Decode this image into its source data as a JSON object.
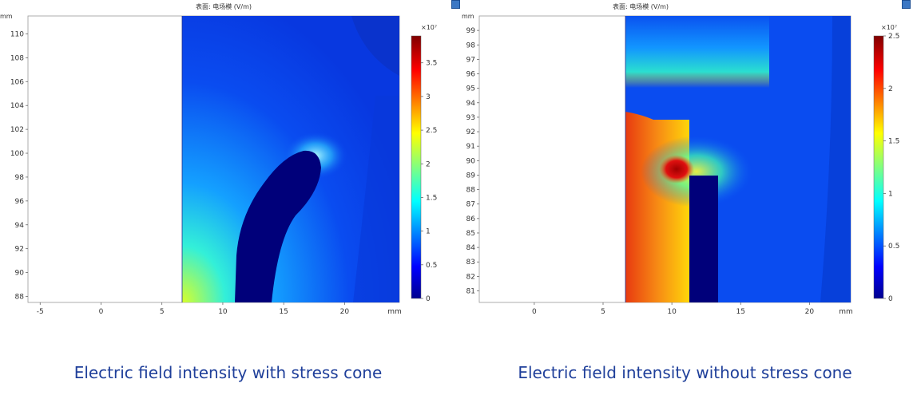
{
  "chart_data": [
    {
      "type": "heatmap",
      "title": "表面: 电场模 (V/m)",
      "caption": "Electric field intensity with stress cone",
      "xunit": "mm",
      "yunit": "mm",
      "xlim": [
        -6,
        24.5
      ],
      "ylim": [
        87.5,
        111.5
      ],
      "xticks": [
        "-5",
        "0",
        "5",
        "10",
        "15",
        "20"
      ],
      "yticks": [
        "110",
        "108",
        "106",
        "104",
        "102",
        "100",
        "98",
        "96",
        "94",
        "92",
        "90",
        "88"
      ],
      "colorbar": {
        "exponent": "×10⁷",
        "range": [
          0,
          3.9
        ],
        "ticks": [
          "3.5",
          "3",
          "2.5",
          "2",
          "1.5",
          "1",
          "0.5",
          "0"
        ]
      }
    },
    {
      "type": "heatmap",
      "title": "表面: 电场模 (V/m)",
      "caption": "Electric field intensity without stress cone",
      "xunit": "mm",
      "yunit": "mm",
      "xlim": [
        -4,
        23
      ],
      "ylim": [
        80.2,
        100
      ],
      "xticks": [
        "0",
        "5",
        "10",
        "15",
        "20"
      ],
      "yticks": [
        "99",
        "98",
        "97",
        "96",
        "95",
        "94",
        "93",
        "92",
        "91",
        "90",
        "89",
        "88",
        "87",
        "86",
        "85",
        "84",
        "83",
        "82",
        "81"
      ],
      "colorbar": {
        "exponent": "×10⁷",
        "range": [
          0,
          2.5
        ],
        "ticks": [
          "2.5",
          "2",
          "1.5",
          "1",
          "0.5",
          "0"
        ]
      }
    }
  ]
}
